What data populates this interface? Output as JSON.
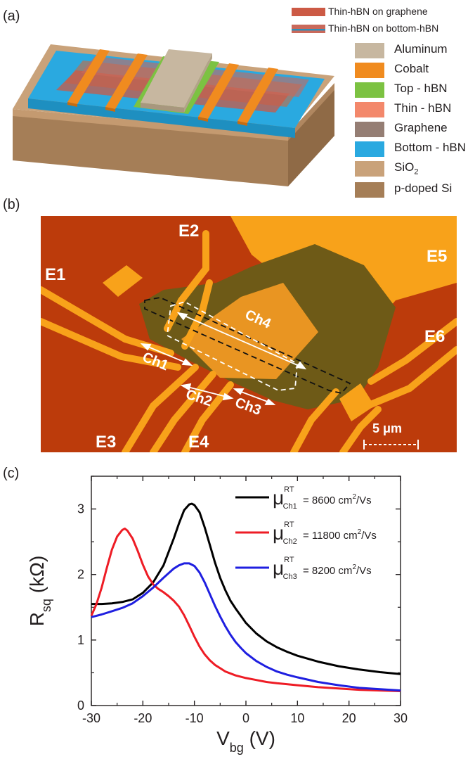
{
  "panels": {
    "a": "(a)",
    "b": "(b)",
    "c": "(c)"
  },
  "device_legend_top": [
    {
      "label": "Thin-hBN on graphene",
      "color": "#cc5a45",
      "accent": "#cc5a45"
    },
    {
      "label": "Thin-hBN on bottom-hBN",
      "color": "#c9695b",
      "accent": "#2e8fb9"
    }
  ],
  "device_legend": [
    {
      "label": "Aluminum",
      "color": "#c7b7a0"
    },
    {
      "label": "Cobalt",
      "color": "#f08b1f"
    },
    {
      "label": "Top - hBN",
      "color": "#7cc242"
    },
    {
      "label": "Thin - hBN",
      "color": "#f3886b"
    },
    {
      "label": "Graphene",
      "color": "#957e74"
    },
    {
      "label": "Bottom - hBN",
      "color": "#2aa9e0"
    },
    {
      "label": "SiO",
      "sub": "2",
      "color": "#c9a27a"
    },
    {
      "label": "p-doped Si",
      "color": "#a57e57"
    }
  ],
  "micrograph": {
    "electrodes": [
      "E1",
      "E2",
      "E3",
      "E4",
      "E5",
      "E6"
    ],
    "channels": [
      "Ch1",
      "Ch2",
      "Ch3",
      "Ch4"
    ],
    "scale_bar": "5 μm",
    "colors": {
      "substrate": "#b8360a",
      "metal": "#f8a21a",
      "flake": "#6e5a17"
    }
  },
  "chart_data": {
    "type": "line",
    "xlabel": "V",
    "xlabel_sub": "bg",
    "xlabel_unit": "(V)",
    "ylabel": "R",
    "ylabel_sub": "sq",
    "ylabel_unit": "(kΩ)",
    "xlim": [
      -30,
      30
    ],
    "ylim": [
      0,
      3.5
    ],
    "xticks": [
      -30,
      -20,
      -10,
      0,
      10,
      20,
      30
    ],
    "yticks": [
      0,
      1,
      2,
      3
    ],
    "series": [
      {
        "name": "μ^RT_Ch1 = 8600 cm²/Vs",
        "mu": "μ",
        "sup": "RT",
        "sub": "Ch1",
        "text": "= 8600 cm",
        "sup2": "2",
        "unit": "/Vs",
        "color": "#000000",
        "x": [
          -30,
          -28,
          -26,
          -24,
          -22,
          -20,
          -18,
          -16,
          -14,
          -13,
          -12,
          -11,
          -10.5,
          -10,
          -9,
          -8,
          -7,
          -6,
          -5,
          -4,
          -3,
          -2,
          -1,
          0,
          2,
          4,
          6,
          8,
          10,
          14,
          18,
          22,
          26,
          30
        ],
        "y": [
          1.55,
          1.55,
          1.56,
          1.58,
          1.62,
          1.72,
          1.88,
          2.14,
          2.55,
          2.78,
          2.98,
          3.07,
          3.08,
          3.06,
          2.95,
          2.72,
          2.45,
          2.18,
          1.95,
          1.76,
          1.6,
          1.48,
          1.37,
          1.26,
          1.1,
          0.98,
          0.89,
          0.82,
          0.76,
          0.67,
          0.6,
          0.55,
          0.51,
          0.48
        ]
      },
      {
        "name": "μ^RT_Ch2 = 11800 cm²/Vs",
        "mu": "μ",
        "sup": "RT",
        "sub": "Ch2",
        "text": "= 11800 cm",
        "sup2": "2",
        "unit": "/Vs",
        "color": "#ee1c25",
        "x": [
          -30,
          -29,
          -28,
          -27,
          -26,
          -25,
          -24,
          -23.5,
          -23,
          -22,
          -21,
          -20,
          -19,
          -18,
          -17,
          -16,
          -15,
          -14,
          -13,
          -12,
          -11,
          -10,
          -9,
          -8,
          -7,
          -6,
          -5,
          -4,
          -2,
          0,
          2,
          4,
          6,
          10,
          14,
          18,
          22,
          26,
          30
        ],
        "y": [
          1.37,
          1.55,
          1.8,
          2.1,
          2.38,
          2.58,
          2.68,
          2.7,
          2.67,
          2.55,
          2.36,
          2.15,
          1.97,
          1.85,
          1.78,
          1.73,
          1.67,
          1.6,
          1.51,
          1.38,
          1.22,
          1.05,
          0.9,
          0.78,
          0.69,
          0.62,
          0.57,
          0.52,
          0.46,
          0.42,
          0.39,
          0.36,
          0.34,
          0.31,
          0.28,
          0.26,
          0.24,
          0.23,
          0.22
        ]
      },
      {
        "name": "μ^RT_Ch3 = 8200 cm²/Vs",
        "mu": "μ",
        "sup": "RT",
        "sub": "Ch3",
        "text": "= 8200 cm",
        "sup2": "2",
        "unit": "/Vs",
        "color": "#1f1fe0",
        "x": [
          -30,
          -28,
          -26,
          -24,
          -22,
          -20,
          -18,
          -16,
          -14,
          -13,
          -12,
          -11,
          -10,
          -9,
          -8,
          -7,
          -6,
          -5,
          -4,
          -3,
          -2,
          -1,
          0,
          2,
          4,
          6,
          8,
          10,
          14,
          18,
          22,
          26,
          30
        ],
        "y": [
          1.35,
          1.39,
          1.44,
          1.49,
          1.56,
          1.67,
          1.8,
          1.95,
          2.09,
          2.14,
          2.17,
          2.17,
          2.13,
          2.03,
          1.88,
          1.7,
          1.52,
          1.36,
          1.21,
          1.08,
          0.97,
          0.88,
          0.8,
          0.68,
          0.59,
          0.52,
          0.47,
          0.43,
          0.36,
          0.31,
          0.27,
          0.25,
          0.23
        ]
      }
    ]
  }
}
